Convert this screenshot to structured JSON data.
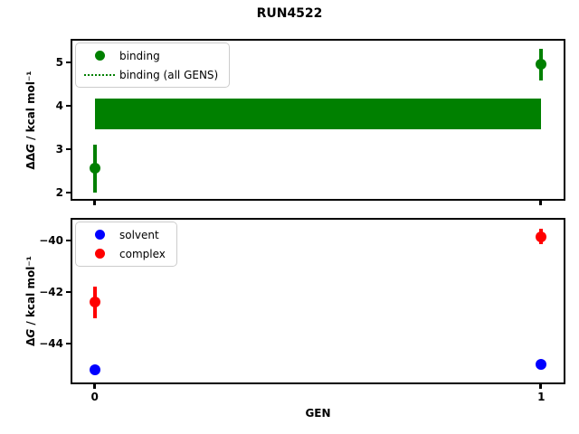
{
  "figure": {
    "title": "RUN4522",
    "xlabel": "GEN",
    "background": "#ffffff"
  },
  "chart_data": [
    {
      "type": "scatter",
      "panel": "relative-binding-free-energy",
      "ylabel": "ΔΔG / kcal mol⁻¹",
      "ylabel_parts": {
        "prefix": "ΔΔ",
        "italic": "G",
        "suffix": " / kcal mol⁻¹"
      },
      "xlim": [
        -0.05,
        1.05
      ],
      "ylim": [
        1.85,
        5.5
      ],
      "yticks": [
        5,
        4,
        3,
        2
      ],
      "xticks": [
        0,
        1
      ],
      "show_xtick_labels": false,
      "grid": false,
      "legend_position": "upper left",
      "series": [
        {
          "name": "binding",
          "color": "#008000",
          "marker": "circle",
          "points": [
            {
              "x": 0,
              "y": 2.55,
              "yerr": 0.55
            },
            {
              "x": 1,
              "y": 4.95,
              "yerr": 0.36
            }
          ]
        }
      ],
      "band": {
        "label": "binding (all GENS)",
        "color": "#008000",
        "x_from": 0,
        "x_to": 1,
        "y_low": 3.45,
        "y_high": 4.17
      },
      "legend": [
        {
          "label": "binding",
          "marker": "dot",
          "color": "#008000"
        },
        {
          "label": "binding (all GENS)",
          "marker": "dotted-line",
          "color": "#008000"
        }
      ]
    },
    {
      "type": "scatter",
      "panel": "absolute-free-energy",
      "ylabel": "ΔG / kcal mol⁻¹",
      "ylabel_parts": {
        "prefix": "Δ",
        "italic": "G",
        "suffix": " / kcal mol⁻¹"
      },
      "xlim": [
        -0.05,
        1.05
      ],
      "ylim": [
        -45.5,
        -39.2
      ],
      "yticks": [
        -40,
        -42,
        -44
      ],
      "xticks": [
        0,
        1
      ],
      "show_xtick_labels": true,
      "grid": false,
      "legend_position": "upper left",
      "series": [
        {
          "name": "solvent",
          "color": "#0000ff",
          "marker": "circle",
          "points": [
            {
              "x": 0,
              "y": -45.0,
              "yerr": 0.08
            },
            {
              "x": 1,
              "y": -44.8,
              "yerr": 0.12
            }
          ]
        },
        {
          "name": "complex",
          "color": "#ff0000",
          "marker": "circle",
          "points": [
            {
              "x": 0,
              "y": -42.4,
              "yerr": 0.6
            },
            {
              "x": 1,
              "y": -39.85,
              "yerr": 0.3
            }
          ]
        }
      ],
      "legend": [
        {
          "label": "solvent",
          "marker": "dot",
          "color": "#0000ff"
        },
        {
          "label": "complex",
          "marker": "dot",
          "color": "#ff0000"
        }
      ]
    }
  ]
}
